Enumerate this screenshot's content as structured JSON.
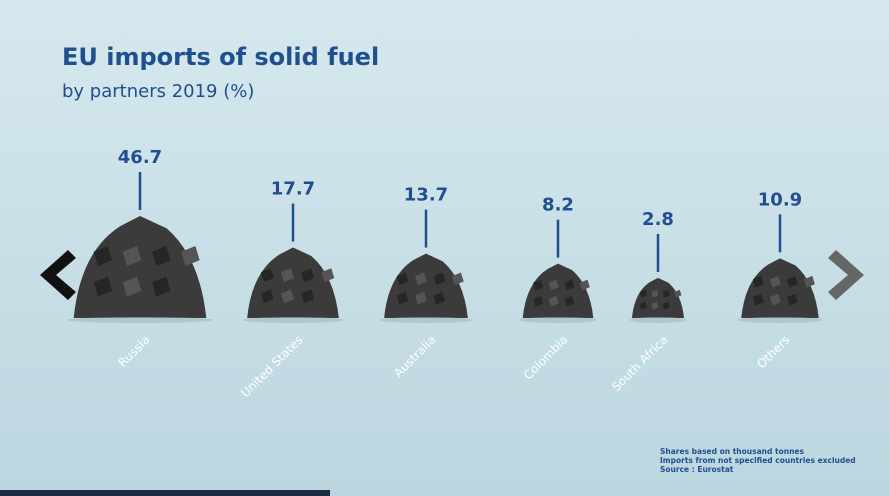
{
  "chart_data": {
    "type": "pictogram",
    "title": "EU imports of solid fuel",
    "subtitle": "by partners 2019 (%)",
    "categories": [
      "Russia",
      "United States",
      "Australia",
      "Colombia",
      "South Africa",
      "Others"
    ],
    "values": [
      46.7,
      17.7,
      13.7,
      8.2,
      2.8,
      10.9
    ],
    "color": "#3b3b3b",
    "label_color": "#1f4f8f",
    "notes": [
      "Shares based on thousand tonnes",
      "Imports from not specified countries excluded",
      "Source : Eurostat"
    ]
  }
}
